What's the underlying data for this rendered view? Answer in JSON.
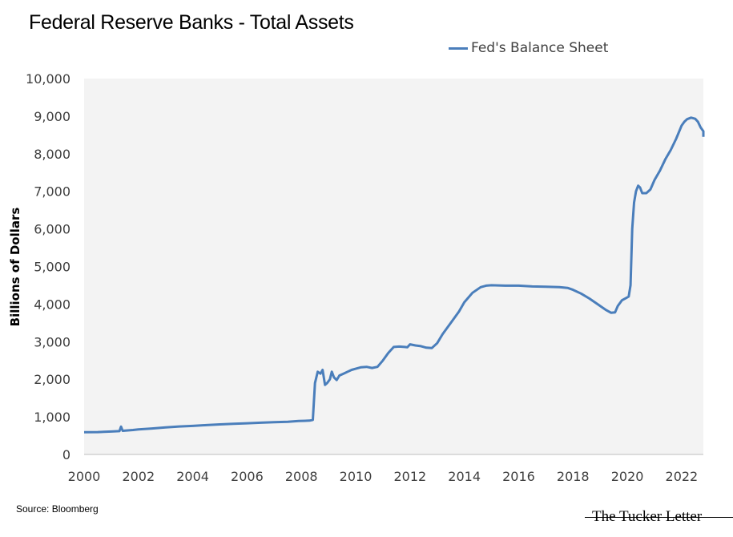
{
  "chart_data": {
    "type": "line",
    "title": "Federal Reserve Banks - Total Assets",
    "ylabel": "Billions of Dollars",
    "xlabel": "",
    "xlim": [
      2000,
      2022.8
    ],
    "ylim": [
      0,
      10000
    ],
    "x_ticks": [
      "2000",
      "2002",
      "2004",
      "2006",
      "2008",
      "2010",
      "2012",
      "2014",
      "2016",
      "2018",
      "2020",
      "2022"
    ],
    "y_ticks": [
      "0",
      "1,000",
      "2,000",
      "3,000",
      "4,000",
      "5,000",
      "6,000",
      "7,000",
      "8,000",
      "9,000",
      "10,000"
    ],
    "grid": false,
    "legend_position": "top-right",
    "series": [
      {
        "name": "Fed's Balance Sheet",
        "color": "#4a7ebb",
        "points": [
          [
            2000.0,
            590
          ],
          [
            2000.5,
            595
          ],
          [
            2001.0,
            610
          ],
          [
            2001.3,
            620
          ],
          [
            2001.36,
            740
          ],
          [
            2001.42,
            630
          ],
          [
            2001.8,
            650
          ],
          [
            2002.0,
            665
          ],
          [
            2002.5,
            690
          ],
          [
            2003.0,
            720
          ],
          [
            2003.5,
            745
          ],
          [
            2004.0,
            760
          ],
          [
            2004.5,
            780
          ],
          [
            2005.0,
            800
          ],
          [
            2005.5,
            815
          ],
          [
            2006.0,
            830
          ],
          [
            2006.5,
            845
          ],
          [
            2007.0,
            860
          ],
          [
            2007.5,
            870
          ],
          [
            2007.9,
            890
          ],
          [
            2008.3,
            900
          ],
          [
            2008.42,
            920
          ],
          [
            2008.5,
            1900
          ],
          [
            2008.6,
            2200
          ],
          [
            2008.7,
            2150
          ],
          [
            2008.78,
            2250
          ],
          [
            2008.87,
            1850
          ],
          [
            2008.95,
            1900
          ],
          [
            2009.05,
            2000
          ],
          [
            2009.12,
            2200
          ],
          [
            2009.2,
            2050
          ],
          [
            2009.3,
            1980
          ],
          [
            2009.4,
            2100
          ],
          [
            2009.55,
            2150
          ],
          [
            2009.7,
            2200
          ],
          [
            2009.85,
            2250
          ],
          [
            2010.0,
            2280
          ],
          [
            2010.2,
            2320
          ],
          [
            2010.4,
            2330
          ],
          [
            2010.6,
            2300
          ],
          [
            2010.8,
            2330
          ],
          [
            2011.0,
            2500
          ],
          [
            2011.2,
            2700
          ],
          [
            2011.4,
            2860
          ],
          [
            2011.6,
            2870
          ],
          [
            2011.8,
            2860
          ],
          [
            2011.9,
            2850
          ],
          [
            2012.0,
            2930
          ],
          [
            2012.2,
            2900
          ],
          [
            2012.4,
            2880
          ],
          [
            2012.6,
            2840
          ],
          [
            2012.8,
            2830
          ],
          [
            2013.0,
            2960
          ],
          [
            2013.2,
            3200
          ],
          [
            2013.5,
            3500
          ],
          [
            2013.8,
            3800
          ],
          [
            2014.0,
            4050
          ],
          [
            2014.3,
            4300
          ],
          [
            2014.6,
            4450
          ],
          [
            2014.8,
            4490
          ],
          [
            2015.0,
            4500
          ],
          [
            2015.5,
            4490
          ],
          [
            2016.0,
            4490
          ],
          [
            2016.5,
            4470
          ],
          [
            2017.0,
            4460
          ],
          [
            2017.5,
            4450
          ],
          [
            2017.8,
            4430
          ],
          [
            2018.0,
            4380
          ],
          [
            2018.3,
            4280
          ],
          [
            2018.6,
            4150
          ],
          [
            2018.9,
            4000
          ],
          [
            2019.2,
            3850
          ],
          [
            2019.4,
            3770
          ],
          [
            2019.55,
            3780
          ],
          [
            2019.65,
            3950
          ],
          [
            2019.8,
            4100
          ],
          [
            2019.95,
            4160
          ],
          [
            2020.05,
            4200
          ],
          [
            2020.12,
            4500
          ],
          [
            2020.18,
            6000
          ],
          [
            2020.25,
            6700
          ],
          [
            2020.32,
            7000
          ],
          [
            2020.4,
            7150
          ],
          [
            2020.47,
            7100
          ],
          [
            2020.55,
            6950
          ],
          [
            2020.7,
            6950
          ],
          [
            2020.85,
            7050
          ],
          [
            2021.0,
            7300
          ],
          [
            2021.2,
            7550
          ],
          [
            2021.4,
            7850
          ],
          [
            2021.6,
            8100
          ],
          [
            2021.8,
            8400
          ],
          [
            2022.0,
            8750
          ],
          [
            2022.1,
            8850
          ],
          [
            2022.2,
            8920
          ],
          [
            2022.35,
            8960
          ],
          [
            2022.5,
            8930
          ],
          [
            2022.6,
            8850
          ],
          [
            2022.7,
            8700
          ],
          [
            2022.8,
            8600
          ],
          [
            2022.9,
            8450
          ]
        ]
      }
    ]
  },
  "source_label": "Source: Bloomberg",
  "watermark": "The Tucker Letter"
}
